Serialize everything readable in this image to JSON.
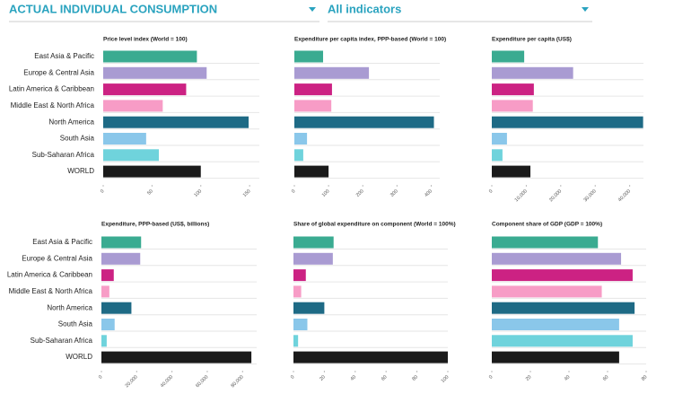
{
  "header": {
    "dropdowns": [
      "ACTUAL INDIVIDUAL CONSUMPTION",
      "All indicators"
    ]
  },
  "chart_data": [
    {
      "type": "bar",
      "title": "Price level index (World = 100)",
      "categories": [
        "East Asia & Pacific",
        "Europe & Central Asia",
        "Latin America & Caribbean",
        "Middle East & North Africa",
        "North America",
        "South Asia",
        "Sub-Saharan Africa",
        "WORLD"
      ],
      "values": [
        96,
        106,
        85,
        61,
        149,
        44,
        57,
        100
      ],
      "colors": [
        "#3aab91",
        "#a99bd2",
        "#cc2283",
        "#f79cc6",
        "#1e6a85",
        "#8ac7ea",
        "#6fd3dc",
        "#1a1a1a"
      ],
      "xlim": [
        0,
        160
      ],
      "xticks": [
        0,
        50,
        100,
        150
      ]
    },
    {
      "type": "bar",
      "title": "Expenditure per capita index, PPP-based (World = 100)",
      "values": [
        84,
        218,
        110,
        108,
        408,
        37,
        26,
        100
      ],
      "colors": [
        "#3aab91",
        "#a99bd2",
        "#cc2283",
        "#f79cc6",
        "#1e6a85",
        "#8ac7ea",
        "#6fd3dc",
        "#1a1a1a"
      ],
      "xlim": [
        0,
        425
      ],
      "xticks": [
        0,
        100,
        200,
        300,
        400
      ]
    },
    {
      "type": "bar",
      "title": "Expenditure per capita (US$)",
      "values": [
        9400,
        23600,
        12200,
        11900,
        43900,
        4400,
        3100,
        11200
      ],
      "colors": [
        "#3aab91",
        "#a99bd2",
        "#cc2283",
        "#f79cc6",
        "#1e6a85",
        "#8ac7ea",
        "#6fd3dc",
        "#1a1a1a"
      ],
      "xlim": [
        0,
        44000
      ],
      "xticks": [
        0,
        {
          "value": 10000,
          "label": "10,000"
        },
        {
          "value": 20000,
          "label": "20,000"
        },
        {
          "value": 30000,
          "label": "30,000"
        },
        {
          "value": 40000,
          "label": "40,000"
        }
      ]
    },
    {
      "type": "bar",
      "title": "Expenditure, PPP-based (US$, billions)",
      "categories": [
        "East Asia & Pacific",
        "Europe & Central Asia",
        "Latin America & Caribbean",
        "Middle East & North Africa",
        "North America",
        "South Asia",
        "Sub-Saharan Africa",
        "WORLD"
      ],
      "values": [
        22500,
        22000,
        7000,
        4500,
        17000,
        7500,
        3000,
        85000
      ],
      "colors": [
        "#3aab91",
        "#a99bd2",
        "#cc2283",
        "#f79cc6",
        "#1e6a85",
        "#8ac7ea",
        "#6fd3dc",
        "#1a1a1a"
      ],
      "xlim": [
        0,
        88000
      ],
      "xticks": [
        0,
        {
          "value": 20000,
          "label": "20,000"
        },
        {
          "value": 40000,
          "label": "40,000"
        },
        {
          "value": 60000,
          "label": "60,000"
        },
        {
          "value": 80000,
          "label": "80,000"
        }
      ]
    },
    {
      "type": "bar",
      "title": "Share of global expenditure on component (World = 100%)",
      "values": [
        26,
        25.5,
        8,
        5,
        20,
        9,
        3,
        100
      ],
      "colors": [
        "#3aab91",
        "#a99bd2",
        "#cc2283",
        "#f79cc6",
        "#1e6a85",
        "#8ac7ea",
        "#6fd3dc",
        "#1a1a1a"
      ],
      "xlim": [
        0,
        100
      ],
      "xticks": [
        0,
        20,
        40,
        60,
        80,
        100
      ]
    },
    {
      "type": "bar",
      "title": "Component share of GDP (GDP = 100%)",
      "values": [
        55,
        67,
        73,
        57,
        74,
        66,
        73,
        66
      ],
      "colors": [
        "#3aab91",
        "#a99bd2",
        "#cc2283",
        "#f79cc6",
        "#1e6a85",
        "#8ac7ea",
        "#6fd3dc",
        "#1a1a1a"
      ],
      "xlim": [
        0,
        80
      ],
      "xticks": [
        0,
        20,
        40,
        60,
        80
      ]
    }
  ]
}
